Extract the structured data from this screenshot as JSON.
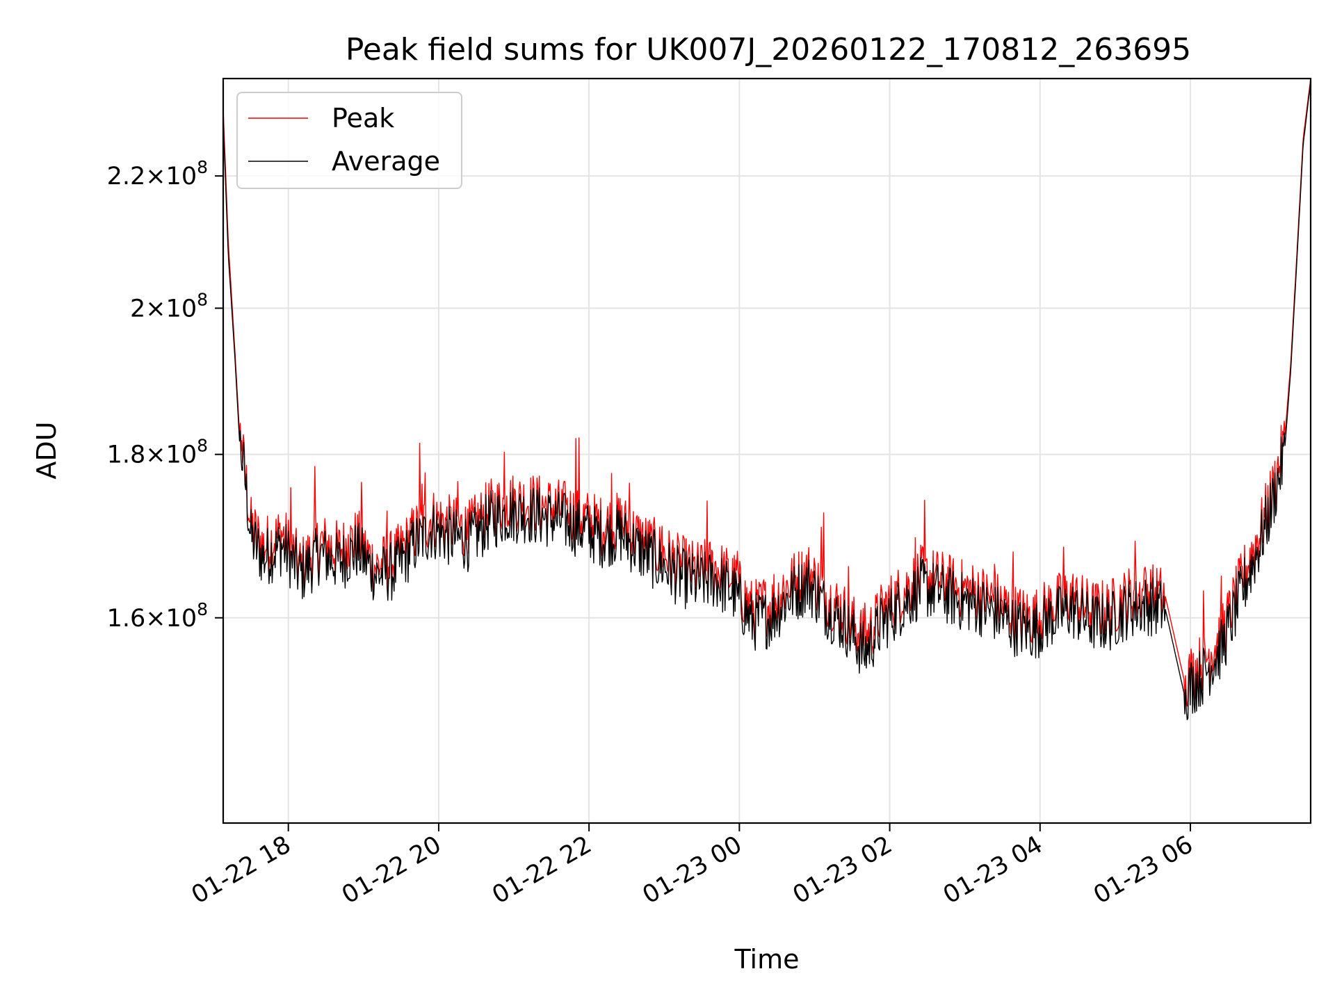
{
  "chart_data": {
    "type": "line",
    "title": "Peak field sums for UK007J_20260122_170812_263695",
    "xlabel": "Time",
    "ylabel": "ADU",
    "scale_y": "log",
    "grid": true,
    "legend_position": "upper-left",
    "xlim": [
      "2026-01-22 17:08",
      "2026-01-23 07:36"
    ],
    "ylim": [
      138000000,
      236000000
    ],
    "x_ticks": [
      {
        "value": "2026-01-22 18:00",
        "label": "01-22 18"
      },
      {
        "value": "2026-01-22 20:00",
        "label": "01-22 20"
      },
      {
        "value": "2026-01-22 22:00",
        "label": "01-22 22"
      },
      {
        "value": "2026-01-23 00:00",
        "label": "01-23 00"
      },
      {
        "value": "2026-01-23 02:00",
        "label": "01-23 02"
      },
      {
        "value": "2026-01-23 04:00",
        "label": "01-23 04"
      },
      {
        "value": "2026-01-23 06:00",
        "label": "01-23 06"
      }
    ],
    "y_ticks": [
      {
        "value": 160000000,
        "mant": "1.6",
        "exp": "8"
      },
      {
        "value": 180000000,
        "mant": "1.8",
        "exp": "8"
      },
      {
        "value": 200000000,
        "mant": "2",
        "exp": "8"
      },
      {
        "value": 220000000,
        "mant": "2.2",
        "exp": "8"
      }
    ],
    "series": [
      {
        "name": "Peak",
        "color": "#ff0000",
        "x": [
          "2026-01-22 17:08",
          "2026-01-22 17:12",
          "2026-01-22 17:17",
          "2026-01-22 17:21",
          "2026-01-22 17:26",
          "2026-01-22 17:30",
          "2026-01-22 17:40",
          "2026-01-22 17:55",
          "2026-01-22 18:10",
          "2026-01-22 18:25",
          "2026-01-22 18:40",
          "2026-01-22 18:55",
          "2026-01-22 19:10",
          "2026-01-22 19:25",
          "2026-01-22 19:40",
          "2026-01-22 19:55",
          "2026-01-22 20:10",
          "2026-01-22 20:25",
          "2026-01-22 20:40",
          "2026-01-22 20:55",
          "2026-01-22 21:10",
          "2026-01-22 21:25",
          "2026-01-22 21:40",
          "2026-01-22 21:55",
          "2026-01-22 22:10",
          "2026-01-22 22:25",
          "2026-01-22 22:40",
          "2026-01-22 22:55",
          "2026-01-22 23:10",
          "2026-01-22 23:25",
          "2026-01-22 23:40",
          "2026-01-22 23:55",
          "2026-01-23 00:10",
          "2026-01-23 00:25",
          "2026-01-23 00:40",
          "2026-01-23 00:55",
          "2026-01-23 01:10",
          "2026-01-23 01:25",
          "2026-01-23 01:40",
          "2026-01-23 01:55",
          "2026-01-23 02:10",
          "2026-01-23 02:25",
          "2026-01-23 02:40",
          "2026-01-23 02:55",
          "2026-01-23 03:10",
          "2026-01-23 03:25",
          "2026-01-23 03:40",
          "2026-01-23 03:55",
          "2026-01-23 04:10",
          "2026-01-23 04:25",
          "2026-01-23 04:40",
          "2026-01-23 04:55",
          "2026-01-23 05:10",
          "2026-01-23 05:25",
          "2026-01-23 05:40",
          "2026-01-23 05:55",
          "2026-01-23 06:10",
          "2026-01-23 06:25",
          "2026-01-23 06:40",
          "2026-01-23 06:55",
          "2026-01-23 07:05",
          "2026-01-23 07:15",
          "2026-01-23 07:20",
          "2026-01-23 07:25",
          "2026-01-23 07:30",
          "2026-01-23 07:36"
        ],
        "y": [
          231000000,
          210000000,
          195000000,
          183000000,
          177000000,
          171000000,
          168500000,
          170000000,
          166000000,
          169000000,
          168000000,
          169500000,
          166000000,
          167000000,
          170000000,
          172000000,
          171000000,
          170500000,
          173000000,
          174000000,
          174000000,
          173500000,
          173000000,
          172000000,
          171000000,
          171500000,
          169500000,
          168000000,
          166500000,
          165500000,
          166000000,
          164500000,
          161000000,
          161500000,
          164000000,
          165500000,
          162500000,
          160500000,
          157500000,
          161000000,
          163000000,
          165000000,
          164500000,
          163500000,
          163000000,
          162000000,
          160500000,
          160000000,
          161500000,
          162500000,
          161000000,
          161000000,
          162500000,
          163000000,
          162500000,
          153000000,
          155000000,
          158000000,
          164000000,
          170000000,
          175000000,
          181500000,
          192000000,
          208000000,
          226000000,
          236000000
        ]
      },
      {
        "name": "Average",
        "color": "#000000",
        "x": [
          "2026-01-22 17:08",
          "2026-01-22 17:12",
          "2026-01-22 17:17",
          "2026-01-22 17:21",
          "2026-01-22 17:26",
          "2026-01-22 17:30",
          "2026-01-22 17:40",
          "2026-01-22 17:55",
          "2026-01-22 18:10",
          "2026-01-22 18:25",
          "2026-01-22 18:40",
          "2026-01-22 18:55",
          "2026-01-22 19:10",
          "2026-01-22 19:25",
          "2026-01-22 19:40",
          "2026-01-22 19:55",
          "2026-01-22 20:10",
          "2026-01-22 20:25",
          "2026-01-22 20:40",
          "2026-01-22 20:55",
          "2026-01-22 21:10",
          "2026-01-22 21:25",
          "2026-01-22 21:40",
          "2026-01-22 21:55",
          "2026-01-22 22:10",
          "2026-01-22 22:25",
          "2026-01-22 22:40",
          "2026-01-22 22:55",
          "2026-01-22 23:10",
          "2026-01-22 23:25",
          "2026-01-22 23:40",
          "2026-01-22 23:55",
          "2026-01-23 00:10",
          "2026-01-23 00:25",
          "2026-01-23 00:40",
          "2026-01-23 00:55",
          "2026-01-23 01:10",
          "2026-01-23 01:25",
          "2026-01-23 01:40",
          "2026-01-23 01:55",
          "2026-01-23 02:10",
          "2026-01-23 02:25",
          "2026-01-23 02:40",
          "2026-01-23 02:55",
          "2026-01-23 03:10",
          "2026-01-23 03:25",
          "2026-01-23 03:40",
          "2026-01-23 03:55",
          "2026-01-23 04:10",
          "2026-01-23 04:25",
          "2026-01-23 04:40",
          "2026-01-23 04:55",
          "2026-01-23 05:10",
          "2026-01-23 05:25",
          "2026-01-23 05:40",
          "2026-01-23 05:55",
          "2026-01-23 06:10",
          "2026-01-23 06:25",
          "2026-01-23 06:40",
          "2026-01-23 06:55",
          "2026-01-23 07:05",
          "2026-01-23 07:15",
          "2026-01-23 07:20",
          "2026-01-23 07:25",
          "2026-01-23 07:30",
          "2026-01-23 07:36"
        ],
        "y": [
          229000000,
          208000000,
          194000000,
          182000000,
          176000000,
          169500000,
          167000000,
          168500000,
          165000000,
          167500000,
          166500000,
          168000000,
          165000000,
          165500000,
          168500000,
          170500000,
          169500000,
          169000000,
          171500000,
          172500000,
          172500000,
          172000000,
          171500000,
          170500000,
          169500000,
          170000000,
          168000000,
          166500000,
          165000000,
          164000000,
          164500000,
          163000000,
          159500000,
          160000000,
          162500000,
          164000000,
          161000000,
          159000000,
          156000000,
          159500000,
          161500000,
          163500000,
          163000000,
          162000000,
          161500000,
          160500000,
          159000000,
          158500000,
          160000000,
          161000000,
          159500000,
          159500000,
          161000000,
          161500000,
          161000000,
          151500000,
          153500000,
          156500000,
          162500000,
          168500000,
          173500000,
          180000000,
          191000000,
          207000000,
          225000000,
          235500000
        ]
      }
    ]
  }
}
